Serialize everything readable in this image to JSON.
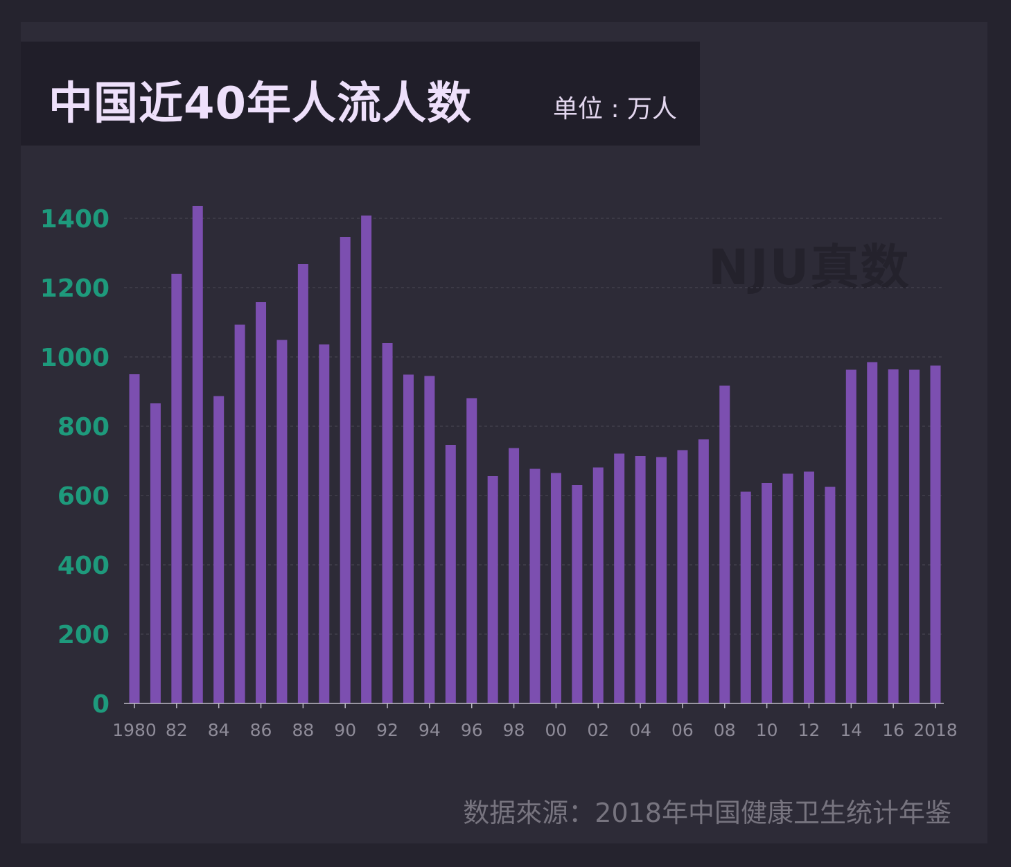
{
  "header": {
    "title": "中国近40年人流人数",
    "unit": "单位 : 万人"
  },
  "watermark": "NJU真数",
  "source": "数据來源：2018年中国健康卫生统计年鉴",
  "colors": {
    "bar": "#7c4fb0",
    "y_tick": "#1e9a7c",
    "x_tick": "#8f8c99",
    "grid": "#4a4856",
    "axis": "#bdbac6"
  },
  "chart_data": {
    "type": "bar",
    "x": [
      1980,
      1981,
      1982,
      1983,
      1984,
      1985,
      1986,
      1987,
      1988,
      1989,
      1990,
      1991,
      1992,
      1993,
      1994,
      1995,
      1996,
      1997,
      1998,
      1999,
      2000,
      2001,
      2002,
      2003,
      2004,
      2005,
      2006,
      2007,
      2008,
      2009,
      2010,
      2011,
      2012,
      2013,
      2014,
      2015,
      2016,
      2017,
      2018
    ],
    "values": [
      950,
      866,
      1240,
      1436,
      887,
      1093,
      1158,
      1049,
      1268,
      1036,
      1346,
      1408,
      1040,
      949,
      945,
      746,
      881,
      656,
      737,
      677,
      665,
      630,
      681,
      721,
      714,
      711,
      731,
      762,
      917,
      611,
      636,
      663,
      669,
      625,
      963,
      985,
      964,
      963,
      975
    ],
    "x_tick_labels": [
      {
        "index": 0,
        "label": "1980"
      },
      {
        "index": 2,
        "label": "82"
      },
      {
        "index": 4,
        "label": "84"
      },
      {
        "index": 6,
        "label": "86"
      },
      {
        "index": 8,
        "label": "88"
      },
      {
        "index": 10,
        "label": "90"
      },
      {
        "index": 12,
        "label": "92"
      },
      {
        "index": 14,
        "label": "94"
      },
      {
        "index": 16,
        "label": "96"
      },
      {
        "index": 18,
        "label": "98"
      },
      {
        "index": 20,
        "label": "00"
      },
      {
        "index": 22,
        "label": "02"
      },
      {
        "index": 24,
        "label": "04"
      },
      {
        "index": 26,
        "label": "06"
      },
      {
        "index": 28,
        "label": "08"
      },
      {
        "index": 30,
        "label": "10"
      },
      {
        "index": 32,
        "label": "12"
      },
      {
        "index": 34,
        "label": "14"
      },
      {
        "index": 36,
        "label": "16"
      },
      {
        "index": 38,
        "label": "2018"
      }
    ],
    "y_ticks": [
      0,
      200,
      400,
      600,
      800,
      1000,
      1200,
      1400
    ],
    "ylim": [
      0,
      1400
    ],
    "grid": true
  }
}
